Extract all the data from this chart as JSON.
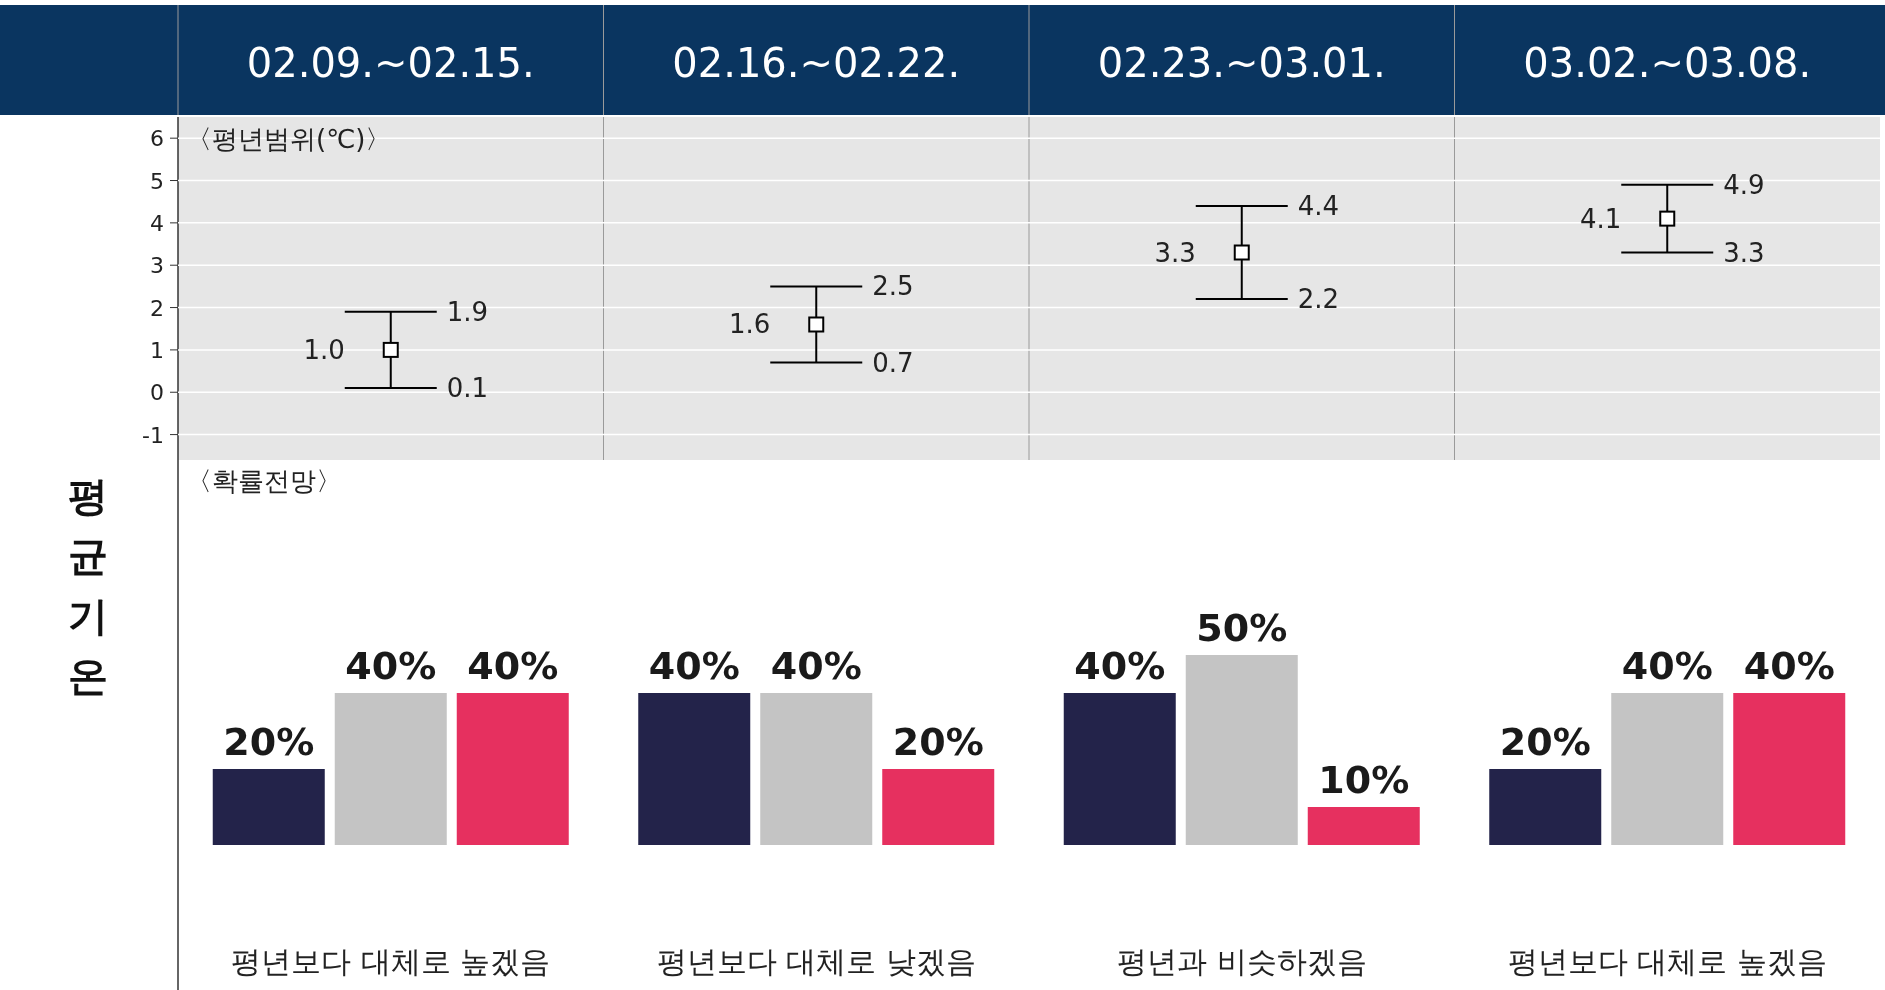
{
  "chart_data": [
    {
      "type": "scatter",
      "title": "〈평년범위(℃)〉",
      "categories": [
        "02.09.~02.15.",
        "02.16.~02.22.",
        "02.23.~03.01.",
        "03.02.~03.08."
      ],
      "series": [
        {
          "color": "#000000",
          "values": [
            1.0,
            1.6,
            3.3,
            4.1
          ],
          "errors": [
            [
              0.1,
              1.9
            ],
            [
              0.7,
              2.5
            ],
            [
              2.2,
              4.4
            ],
            [
              3.3,
              4.9
            ]
          ],
          "value_labels": [
            "1.0",
            "1.6",
            "3.3",
            "4.1"
          ]
        }
      ],
      "ylim": [
        -1.6,
        6.5
      ],
      "yticks": [
        -1,
        0,
        1,
        2,
        3,
        4,
        5,
        6
      ],
      "grid": "y",
      "marker": "square",
      "annotations": [
        {
          "text": "1.9",
          "x": "02.09.~02.15.",
          "y": 1.9
        },
        {
          "text": "0.1",
          "x": "02.09.~02.15.",
          "y": 0.1
        },
        {
          "text": "2.5",
          "x": "02.16.~02.22.",
          "y": 2.5
        },
        {
          "text": "0.7",
          "x": "02.16.~02.22.",
          "y": 0.7
        },
        {
          "text": "4.4",
          "x": "02.23.~03.01.",
          "y": 4.4
        },
        {
          "text": "2.2",
          "x": "02.23.~03.01.",
          "y": 2.2
        },
        {
          "text": "4.9",
          "x": "03.02.~03.08.",
          "y": 4.9
        },
        {
          "text": "3.3",
          "x": "03.02.~03.08.",
          "y": 3.3
        }
      ]
    },
    {
      "type": "bar",
      "title": "〈확률전망〉",
      "ylabel": "평균기온",
      "categories": [
        "02.09.~02.15.",
        "02.16.~02.22.",
        "02.23.~03.01.",
        "03.02.~03.08."
      ],
      "tick_labels": false,
      "series": [
        {
          "color": "#23234a",
          "values": [
            20,
            40,
            40,
            20
          ],
          "value_labels": [
            "20%",
            "40%",
            "40%",
            "20%"
          ]
        },
        {
          "color": "#c4c4c4",
          "values": [
            40,
            40,
            50,
            40
          ],
          "value_labels": [
            "40%",
            "40%",
            "50%",
            "40%"
          ]
        },
        {
          "color": "#e6305f",
          "values": [
            40,
            20,
            10,
            40
          ],
          "value_labels": [
            "40%",
            "20%",
            "10%",
            "40%"
          ]
        }
      ],
      "annotations": [
        "평년보다 대체로 높겠음",
        "평년보다 대체로 낮겠음",
        "평년과 비슷하겠음",
        "평년보다 대체로 높겠음"
      ]
    }
  ]
}
